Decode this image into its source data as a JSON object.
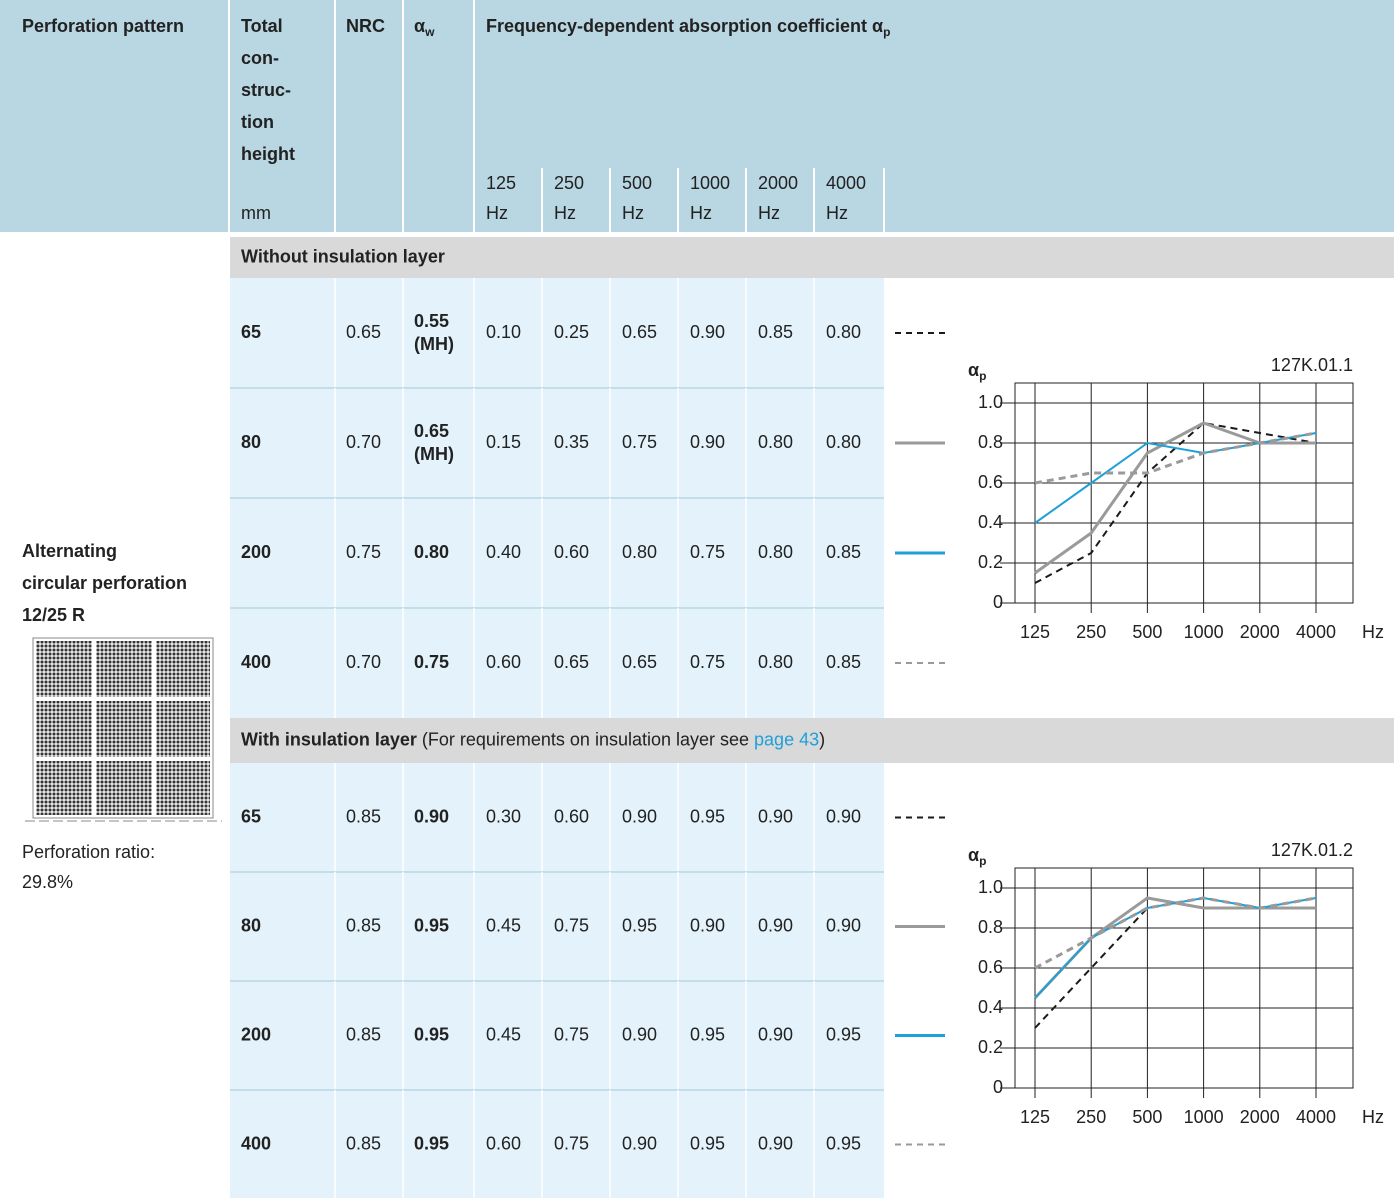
{
  "header": {
    "pattern": "Perforation pattern",
    "height_lines": [
      "Total",
      "con-",
      "struc-",
      "tion",
      "height"
    ],
    "height_unit": "mm",
    "nrc": "NRC",
    "aw_symbol": "α",
    "aw_sub": "w",
    "freq_title": "Frequency-dependent absorption coefficient α",
    "freq_sub": "p",
    "freq_unit": "Hz"
  },
  "pattern": {
    "name_lines": [
      "Alternating",
      "circular perforation",
      "12/25 R"
    ],
    "ratio_label": "Perforation ratio:",
    "ratio": "29.8%"
  },
  "sections": [
    {
      "title": "Without insulation layer",
      "rows": [
        {
          "nrc": "0.65",
          "aw": "0.55",
          "aw_note": "(MH)"
        },
        {
          "nrc": "0.70",
          "aw": "0.65",
          "aw_note": "(MH)"
        },
        {
          "nrc": "0.75",
          "aw": "0.80"
        },
        {
          "nrc": "0.70",
          "aw": "0.75"
        }
      ]
    },
    {
      "title": "With insulation layer",
      "note": "(For requirements on insulation layer see",
      "link": "page 43",
      "note_end": ")",
      "rows": [
        {
          "nrc": "0.85",
          "aw": "0.90"
        },
        {
          "nrc": "0.85",
          "aw": "0.95"
        },
        {
          "nrc": "0.85",
          "aw": "0.95"
        },
        {
          "nrc": "0.85",
          "aw": "0.95"
        }
      ]
    }
  ],
  "chart_data": [
    {
      "type": "line",
      "code": "127K.01.1",
      "ylabel": "α",
      "ylabel_sub": "p",
      "xlabel": "Hz",
      "categories": [
        "125",
        "250",
        "500",
        "1000",
        "2000",
        "4000"
      ],
      "ylim": [
        0,
        1.1
      ],
      "yticks": [
        0,
        0.2,
        0.4,
        0.6,
        0.8,
        {
          "value": 1,
          "label": "1.0"
        }
      ],
      "grid": true,
      "series": [
        {
          "name": "65",
          "color": "#1a1a1a",
          "dashed": true,
          "values": [
            0.1,
            0.25,
            0.65,
            0.9,
            0.85,
            0.8
          ],
          "value_labels": [
            "0.10",
            "0.25",
            "0.65",
            "0.90",
            "0.85",
            "0.80"
          ]
        },
        {
          "name": "80",
          "color": "#9a9a9a",
          "dashed": false,
          "values": [
            0.15,
            0.35,
            0.75,
            0.9,
            0.8,
            0.8
          ],
          "value_labels": [
            "0.15",
            "0.35",
            "0.75",
            "0.90",
            "0.80",
            "0.80"
          ]
        },
        {
          "name": "200",
          "color": "#1ea0d8",
          "dashed": false,
          "values": [
            0.4,
            0.6,
            0.8,
            0.75,
            0.8,
            0.85
          ],
          "value_labels": [
            "0.40",
            "0.60",
            "0.80",
            "0.75",
            "0.80",
            "0.85"
          ]
        },
        {
          "name": "400",
          "color": "#9a9a9a",
          "dashed": true,
          "values": [
            0.6,
            0.65,
            0.65,
            0.75,
            0.8,
            0.85
          ],
          "value_labels": [
            "0.60",
            "0.65",
            "0.65",
            "0.75",
            "0.80",
            "0.85"
          ]
        }
      ]
    },
    {
      "type": "line",
      "code": "127K.01.2",
      "ylabel": "α",
      "ylabel_sub": "p",
      "xlabel": "Hz",
      "categories": [
        "125",
        "250",
        "500",
        "1000",
        "2000",
        "4000"
      ],
      "ylim": [
        0,
        1.1
      ],
      "yticks": [
        0,
        0.2,
        0.4,
        0.6,
        0.8,
        {
          "value": 1,
          "label": "1.0"
        }
      ],
      "grid": true,
      "series": [
        {
          "name": "65",
          "color": "#1a1a1a",
          "dashed": true,
          "values": [
            0.3,
            0.6,
            0.9,
            0.95,
            0.9,
            0.9
          ],
          "value_labels": [
            "0.30",
            "0.60",
            "0.90",
            "0.95",
            "0.90",
            "0.90"
          ]
        },
        {
          "name": "80",
          "color": "#9a9a9a",
          "dashed": false,
          "values": [
            0.45,
            0.75,
            0.95,
            0.9,
            0.9,
            0.9
          ],
          "value_labels": [
            "0.45",
            "0.75",
            "0.95",
            "0.90",
            "0.90",
            "0.90"
          ]
        },
        {
          "name": "200",
          "color": "#1ea0d8",
          "dashed": false,
          "values": [
            0.45,
            0.75,
            0.9,
            0.95,
            0.9,
            0.95
          ],
          "value_labels": [
            "0.45",
            "0.75",
            "0.90",
            "0.95",
            "0.90",
            "0.95"
          ]
        },
        {
          "name": "400",
          "color": "#9a9a9a",
          "dashed": true,
          "values": [
            0.6,
            0.75,
            0.9,
            0.95,
            0.9,
            0.95
          ],
          "value_labels": [
            "0.60",
            "0.75",
            "0.90",
            "0.95",
            "0.90",
            "0.95"
          ]
        }
      ]
    }
  ]
}
